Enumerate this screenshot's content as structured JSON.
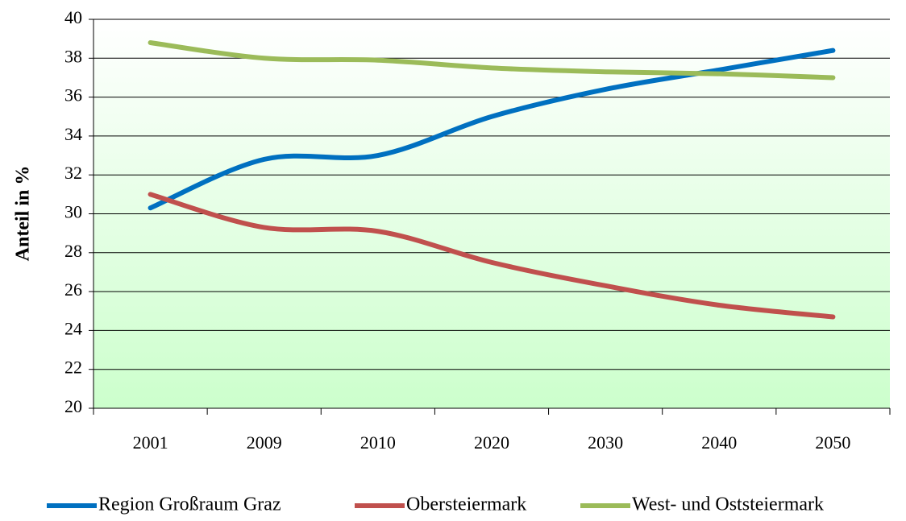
{
  "chart_data": {
    "type": "line",
    "y_label": "Anteil in %",
    "categories": [
      "2001",
      "2009",
      "2010",
      "2020",
      "2030",
      "2040",
      "2050"
    ],
    "series": [
      {
        "name": "Region Großraum Graz",
        "color": "#0070c0",
        "values": [
          30.3,
          32.8,
          33.0,
          35.0,
          36.4,
          37.4,
          38.4
        ]
      },
      {
        "name": "Obersteiermark",
        "color": "#c0504d",
        "values": [
          31.0,
          29.3,
          29.1,
          27.5,
          26.3,
          25.3,
          24.7
        ]
      },
      {
        "name": "West- und Oststeiermark",
        "color": "#9bbb59",
        "values": [
          38.8,
          38.0,
          37.9,
          37.5,
          37.3,
          37.2,
          37.0
        ]
      }
    ],
    "ylim": [
      20,
      40
    ],
    "yticks": [
      20,
      22,
      24,
      26,
      28,
      30,
      32,
      34,
      36,
      38,
      40
    ],
    "grid": true,
    "smooth": true,
    "legend": "bottom"
  }
}
